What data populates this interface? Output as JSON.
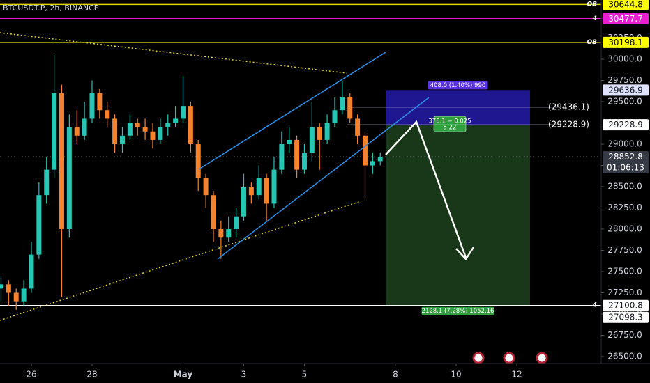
{
  "header": "BTCUSDT.P, 2h, BINANCE",
  "chart_data": {
    "type": "candlestick",
    "x": [
      25,
      25.25,
      25.5,
      25.75,
      26,
      26.25,
      26.5,
      26.75,
      27,
      27.25,
      27.5,
      27.75,
      28,
      28.25,
      28.5,
      28.75,
      29,
      29.25,
      29.5,
      29.75,
      30,
      30.25,
      30.5,
      30.75,
      31,
      31.25,
      31.5,
      31.75,
      32,
      32.25,
      32.5,
      32.75,
      33,
      33.25,
      33.5,
      33.75,
      34,
      34.25,
      34.5,
      34.75,
      35,
      35.25,
      35.5,
      35.75,
      36,
      36.25,
      36.5,
      36.75,
      37,
      37.25,
      37.5
    ],
    "open": [
      27300,
      27350,
      27250,
      27150,
      27300,
      27700,
      28400,
      28700,
      29600,
      28000,
      29200,
      29100,
      29300,
      29600,
      29400,
      29300,
      29000,
      29100,
      29250,
      29200,
      29150,
      29050,
      29200,
      29250,
      29300,
      29450,
      29000,
      28600,
      28400,
      28000,
      27900,
      28000,
      28150,
      28500,
      28400,
      28600,
      28300,
      28700,
      29000,
      29050,
      28700,
      28900,
      29200,
      29050,
      29250,
      29400,
      29550,
      29300,
      29100,
      28750,
      28800
    ],
    "high": [
      27450,
      27400,
      27300,
      27400,
      27850,
      28550,
      28850,
      30050,
      29700,
      29350,
      29400,
      29500,
      29750,
      29650,
      29500,
      29350,
      29200,
      29350,
      29300,
      29300,
      29250,
      29300,
      29350,
      29450,
      29800,
      29500,
      29050,
      28650,
      28450,
      28100,
      28150,
      28250,
      28650,
      28550,
      28750,
      28650,
      28850,
      29150,
      29200,
      29100,
      29000,
      29500,
      29250,
      29350,
      29550,
      29750,
      29600,
      29350,
      29150,
      28900,
      28900
    ],
    "low": [
      27150,
      27100,
      27050,
      27100,
      27250,
      27650,
      28300,
      28600,
      27200,
      27900,
      29000,
      29050,
      29250,
      29300,
      29200,
      28900,
      28900,
      29050,
      29100,
      29050,
      28950,
      29000,
      29100,
      29200,
      29250,
      28900,
      28450,
      28250,
      27850,
      27650,
      27850,
      27900,
      28100,
      28300,
      28350,
      28100,
      28250,
      28650,
      28900,
      28600,
      28650,
      28800,
      28700,
      29000,
      29200,
      29350,
      29250,
      29000,
      28350,
      28650,
      28750
    ],
    "close": [
      27350,
      27250,
      27150,
      27300,
      27700,
      28400,
      28700,
      29600,
      28000,
      29200,
      29100,
      29300,
      29600,
      29400,
      29300,
      29000,
      29100,
      29250,
      29200,
      29150,
      29050,
      29200,
      29250,
      29300,
      29450,
      29000,
      28600,
      28400,
      28000,
      27900,
      28000,
      28150,
      28500,
      28400,
      28600,
      28300,
      28700,
      29000,
      29050,
      28700,
      28900,
      29200,
      29050,
      29250,
      29400,
      29550,
      29300,
      29100,
      28750,
      28800,
      28852.8
    ],
    "up_color": "#26c6b4",
    "down_color": "#f5822c",
    "xlim": [
      24.966,
      44.782
    ],
    "xticks": [
      26,
      28,
      {
        "value": 31,
        "label": "May"
      },
      {
        "value": 33,
        "label": "3"
      },
      {
        "value": 35,
        "label": "5"
      },
      {
        "value": 38,
        "label": "8"
      },
      {
        "value": 40,
        "label": "10"
      },
      {
        "value": 42,
        "label": "12"
      }
    ],
    "ylim": [
      26418,
      30697
    ],
    "yticks": [
      {
        "value": 26500,
        "label": "26500.0"
      },
      {
        "value": 26750,
        "label": "26750.0"
      },
      {
        "value": 27000,
        "label": "27000.0"
      },
      {
        "value": 27250,
        "label": "27250.0"
      },
      {
        "value": 27500,
        "label": "27500.0"
      },
      {
        "value": 27750,
        "label": "27750.0"
      },
      {
        "value": 28000,
        "label": "28000.0"
      },
      {
        "value": 28250,
        "label": "28250.0"
      },
      {
        "value": 28500,
        "label": "28500.0"
      },
      {
        "value": 28750,
        "label": "28750.0"
      },
      {
        "value": 29000,
        "label": "29000.0"
      },
      {
        "value": 29250,
        "label": "29250.0"
      },
      {
        "value": 29500,
        "label": "29500.0"
      },
      {
        "value": 29750,
        "label": "29750.0"
      },
      {
        "value": 30000,
        "label": "30000.0"
      },
      {
        "value": 30250,
        "label": "30250.0"
      }
    ],
    "price_lines": [
      {
        "value": 30644.8,
        "line": "solid",
        "color": "#d8d800",
        "bg": "#ffff00",
        "text_color": "#000000",
        "tag": "OB"
      },
      {
        "value": 30477.7,
        "line": "solid",
        "color": "#e91ed1",
        "bg": "#e91ed1",
        "text_color": "#ffffff",
        "tag": "4"
      },
      {
        "value": 30198.1,
        "line": "solid",
        "color": "#d8d800",
        "bg": "#ffff00",
        "text_color": "#000000",
        "tag": "OB"
      },
      {
        "value": 29636.9,
        "line": "none",
        "color": "#3f3fd8",
        "bg": "#dfe3ff",
        "text_color": "#131722"
      },
      {
        "value": 29228.9,
        "line": "none",
        "color": "#ffffff",
        "bg": "#ffffff",
        "text_color": "#131722"
      },
      {
        "value": 28852.8,
        "line": "dotted",
        "color": "#5d606b",
        "bg": "#363a45",
        "text_color": "#ffffff",
        "countdown": "01:06:13"
      },
      {
        "value": 27100.8,
        "line": "solid",
        "color": "#ffffff",
        "bg": "#ffffff",
        "text_color": "#131722",
        "tag": "4"
      },
      {
        "value": 27098.3,
        "line": "none",
        "color": "#ffffff",
        "bg": "#ffffff",
        "text_color": "#131722"
      }
    ],
    "annotations": [
      {
        "value": 29436.1,
        "label": "(29436.1)"
      },
      {
        "value": 29228.9,
        "label": "(29228.9)"
      }
    ],
    "position": {
      "top": 29636.9,
      "entry": 29228.9,
      "bottom": 27100.8,
      "target_label": "408.0 (1.40%) 990",
      "center_label": [
        "376.1 − 0.025",
        "5.22"
      ],
      "stop_label": "2128.1 (7.28%) 1052.16"
    }
  }
}
